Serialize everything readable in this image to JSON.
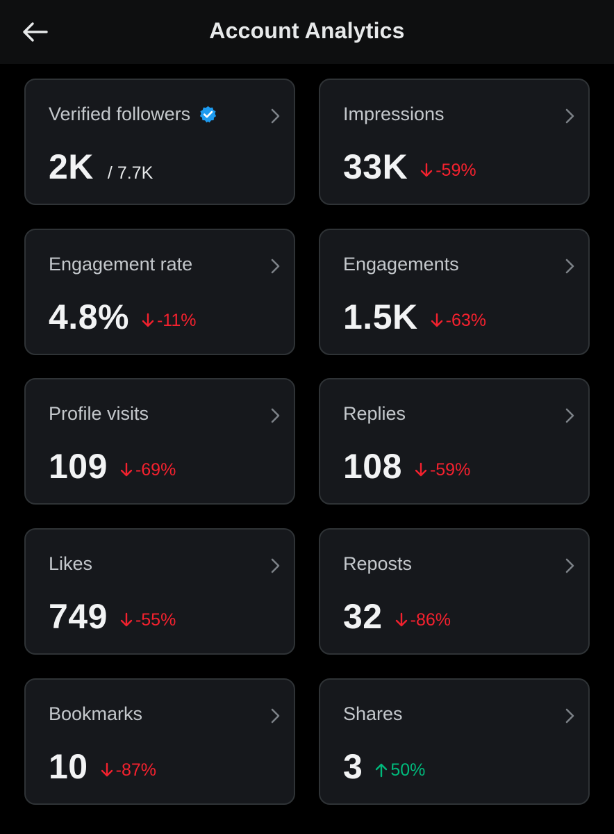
{
  "header": {
    "title": "Account Analytics",
    "back_icon": "arrow-left-icon"
  },
  "colors": {
    "background": "#000000",
    "card": "#16181c",
    "card_border": "#2f3336",
    "negative": "#f4212e",
    "positive": "#00ba7c",
    "verified": "#1d9bf0"
  },
  "cards": [
    {
      "label": "Verified followers",
      "value": "2K",
      "suffix": "/ 7.7K",
      "verified_icon": "verified-badge-icon"
    },
    {
      "label": "Impressions",
      "value": "33K",
      "delta": "-59%",
      "direction": "down"
    },
    {
      "label": "Engagement rate",
      "value": "4.8%",
      "delta": "-11%",
      "direction": "down"
    },
    {
      "label": "Engagements",
      "value": "1.5K",
      "delta": "-63%",
      "direction": "down"
    },
    {
      "label": "Profile visits",
      "value": "109",
      "delta": "-69%",
      "direction": "down"
    },
    {
      "label": "Replies",
      "value": "108",
      "delta": "-59%",
      "direction": "down"
    },
    {
      "label": "Likes",
      "value": "749",
      "delta": "-55%",
      "direction": "down"
    },
    {
      "label": "Reposts",
      "value": "32",
      "delta": "-86%",
      "direction": "down"
    },
    {
      "label": "Bookmarks",
      "value": "10",
      "delta": "-87%",
      "direction": "down"
    },
    {
      "label": "Shares",
      "value": "3",
      "delta": "50%",
      "direction": "up"
    }
  ]
}
